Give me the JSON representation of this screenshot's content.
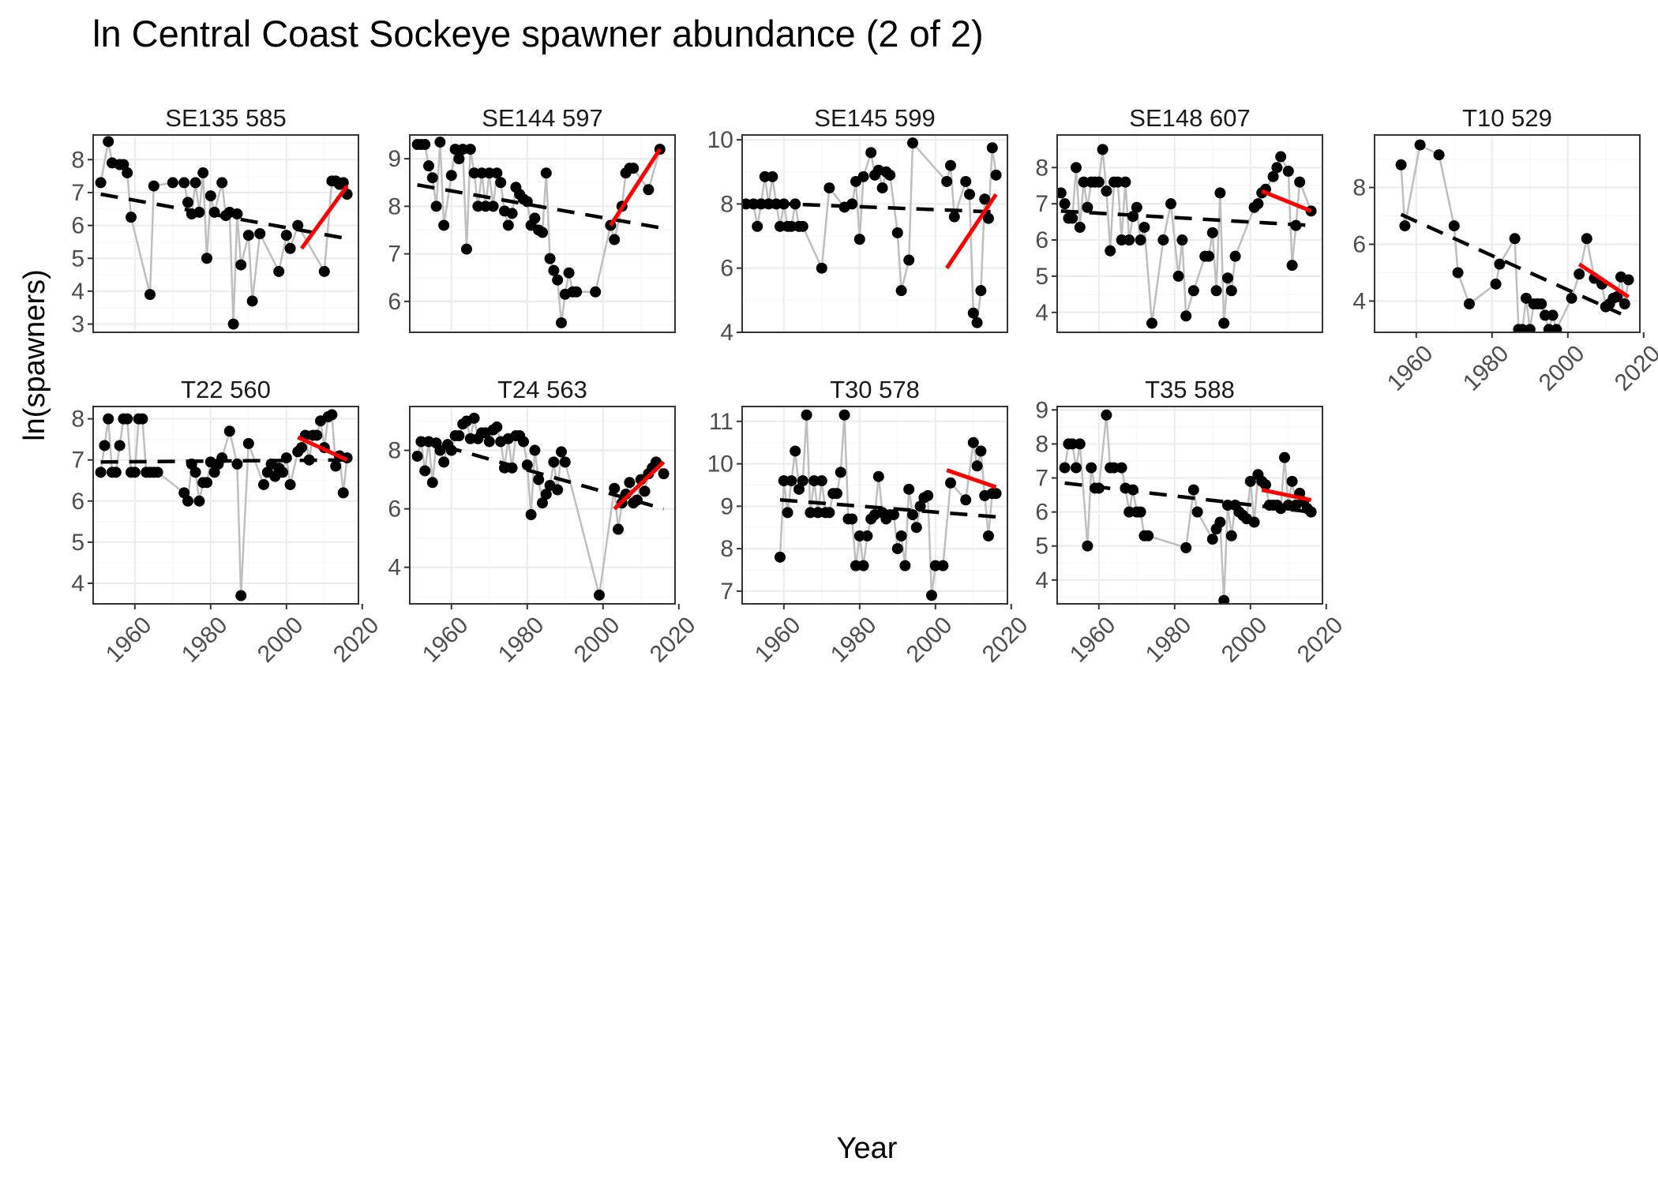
{
  "chart_data": {
    "type": "scatter",
    "title": "ln Central Coast Sockeye spawner abundance (2 of 2)",
    "xlabel": "Year",
    "ylabel": "ln(spawners)",
    "xlim": [
      1949,
      2019
    ],
    "xticks": [
      1960,
      1980,
      2000,
      2020
    ],
    "grid": true,
    "legend": "none",
    "colors": {
      "points": "#000000",
      "connector": "#bebebe",
      "long_trend": "#000000",
      "recent_trend": "#ff0000",
      "panel_border": "#333333",
      "grid": "#ebebeb"
    },
    "panels": [
      {
        "name": "SE135 585",
        "ylim": [
          2.75,
          8.75
        ],
        "yticks": [
          3,
          4,
          5,
          6,
          7,
          8
        ],
        "years": [
          1951,
          1953,
          1954,
          1956,
          1957,
          1958,
          1959,
          1964,
          1965,
          1970,
          1973,
          1974,
          1975,
          1976,
          1977,
          1978,
          1979,
          1980,
          1981,
          1983,
          1984,
          1985,
          1986,
          1987,
          1988,
          1990,
          1991,
          1993,
          1998,
          2000,
          2001,
          2003,
          2010,
          2012,
          2013,
          2014,
          2015,
          2016
        ],
        "values": [
          7.3,
          8.55,
          7.9,
          7.85,
          7.85,
          7.6,
          6.25,
          3.9,
          7.2,
          7.3,
          7.3,
          6.7,
          6.35,
          7.3,
          6.4,
          7.6,
          5.0,
          6.9,
          6.4,
          7.3,
          6.3,
          6.4,
          3.0,
          6.35,
          4.8,
          5.7,
          3.7,
          5.75,
          4.6,
          5.7,
          5.3,
          6.0,
          4.6,
          7.35,
          7.35,
          7.25,
          7.3,
          6.95
        ],
        "long_trend": {
          "x": [
            1951,
            2016
          ],
          "y": [
            6.95,
            5.6
          ]
        },
        "recent_trend": {
          "x": [
            2004,
            2016
          ],
          "y": [
            5.3,
            7.2
          ]
        }
      },
      {
        "name": "SE144 597",
        "ylim": [
          5.35,
          9.5
        ],
        "yticks": [
          6,
          7,
          8,
          9
        ],
        "years": [
          1951,
          1952,
          1953,
          1954,
          1955,
          1956,
          1957,
          1958,
          1960,
          1961,
          1962,
          1963,
          1964,
          1965,
          1966,
          1967,
          1968,
          1969,
          1970,
          1971,
          1972,
          1973,
          1974,
          1975,
          1976,
          1977,
          1978,
          1979,
          1980,
          1981,
          1982,
          1983,
          1984,
          1985,
          1986,
          1987,
          1988,
          1989,
          1990,
          1991,
          1992,
          1993,
          1998,
          2002,
          2003,
          2005,
          2006,
          2007,
          2008,
          2012,
          2015
        ],
        "values": [
          9.3,
          9.3,
          9.3,
          8.85,
          8.6,
          8.0,
          9.35,
          7.6,
          8.65,
          9.2,
          9.0,
          9.2,
          7.1,
          9.2,
          8.7,
          8.0,
          8.7,
          8.0,
          8.7,
          8.0,
          8.7,
          8.5,
          7.9,
          7.6,
          7.85,
          8.4,
          8.25,
          8.15,
          8.1,
          7.6,
          7.75,
          7.5,
          7.45,
          8.7,
          6.9,
          6.65,
          6.45,
          5.55,
          6.15,
          6.6,
          6.2,
          6.2,
          6.2,
          7.6,
          7.3,
          8.0,
          8.7,
          8.8,
          8.8,
          8.35,
          9.2
        ],
        "long_trend": {
          "x": [
            1951,
            2015
          ],
          "y": [
            8.45,
            7.55
          ]
        },
        "recent_trend": {
          "x": [
            2002,
            2015
          ],
          "y": [
            7.6,
            9.2
          ]
        }
      },
      {
        "name": "SE145 599",
        "ylim": [
          4.0,
          10.15
        ],
        "yticks": [
          4,
          6,
          8,
          10
        ],
        "years": [
          1950,
          1952,
          1953,
          1954,
          1955,
          1956,
          1957,
          1958,
          1959,
          1960,
          1961,
          1962,
          1963,
          1964,
          1965,
          1970,
          1972,
          1976,
          1978,
          1979,
          1980,
          1981,
          1983,
          1984,
          1985,
          1986,
          1987,
          1988,
          1990,
          1991,
          1993,
          1994,
          2003,
          2004,
          2005,
          2008,
          2009,
          2010,
          2011,
          2012,
          2013,
          2014,
          2015,
          2016
        ],
        "values": [
          8.0,
          8.0,
          7.3,
          8.0,
          8.85,
          8.0,
          8.85,
          8.0,
          7.3,
          8.0,
          7.3,
          7.3,
          8.0,
          7.3,
          7.3,
          6.0,
          8.5,
          7.9,
          8.0,
          8.7,
          6.9,
          8.85,
          9.6,
          8.9,
          9.05,
          8.5,
          9.0,
          8.9,
          7.1,
          5.3,
          6.25,
          9.9,
          8.7,
          9.2,
          7.6,
          8.7,
          8.3,
          4.6,
          4.3,
          5.3,
          8.15,
          7.55,
          9.75,
          8.9
        ],
        "long_trend": {
          "x": [
            1950,
            2016
          ],
          "y": [
            8.05,
            7.75
          ]
        },
        "recent_trend": {
          "x": [
            2003,
            2016
          ],
          "y": [
            6.0,
            8.3
          ]
        }
      },
      {
        "name": "SE148 607",
        "ylim": [
          3.45,
          8.9
        ],
        "yticks": [
          4,
          5,
          6,
          7,
          8
        ],
        "years": [
          1950,
          1951,
          1952,
          1953,
          1954,
          1955,
          1956,
          1957,
          1958,
          1959,
          1960,
          1961,
          1962,
          1963,
          1964,
          1965,
          1966,
          1967,
          1968,
          1969,
          1970,
          1971,
          1972,
          1974,
          1977,
          1979,
          1981,
          1982,
          1983,
          1985,
          1988,
          1989,
          1990,
          1991,
          1992,
          1993,
          1994,
          1995,
          1996,
          2001,
          2002,
          2003,
          2004,
          2006,
          2007,
          2008,
          2010,
          2011,
          2012,
          2013,
          2016
        ],
        "values": [
          7.3,
          7.0,
          6.6,
          6.6,
          8.0,
          6.35,
          7.6,
          6.9,
          7.6,
          7.6,
          7.6,
          8.5,
          7.35,
          5.7,
          7.6,
          7.6,
          6.0,
          7.6,
          6.0,
          6.65,
          6.9,
          6.0,
          6.35,
          3.7,
          6.0,
          7.0,
          5.0,
          6.0,
          3.9,
          4.6,
          5.55,
          5.55,
          6.2,
          4.6,
          7.3,
          3.7,
          4.95,
          4.6,
          5.55,
          6.9,
          7.0,
          7.3,
          7.4,
          7.75,
          8.0,
          8.3,
          7.9,
          5.3,
          6.4,
          7.6,
          6.8
        ],
        "long_trend": {
          "x": [
            1950,
            2016
          ],
          "y": [
            6.8,
            6.4
          ]
        },
        "recent_trend": {
          "x": [
            2003,
            2016
          ],
          "y": [
            7.35,
            6.8
          ]
        }
      },
      {
        "name": "T10 529",
        "ylim": [
          2.9,
          9.85
        ],
        "yticks": [
          4,
          6,
          8
        ],
        "years": [
          1956,
          1957,
          1961,
          1966,
          1970,
          1971,
          1974,
          1981,
          1982,
          1986,
          1987,
          1988,
          1989,
          1990,
          1991,
          1992,
          1993,
          1994,
          1995,
          1996,
          1997,
          2001,
          2003,
          2005,
          2007,
          2009,
          2010,
          2011,
          2012,
          2013,
          2014,
          2015,
          2016
        ],
        "values": [
          8.8,
          6.65,
          9.5,
          9.15,
          6.65,
          5.0,
          3.9,
          4.6,
          5.3,
          6.2,
          3.0,
          3.0,
          4.1,
          3.0,
          3.9,
          3.9,
          3.9,
          3.5,
          3.0,
          3.5,
          3.0,
          4.1,
          4.95,
          6.2,
          4.8,
          4.6,
          3.8,
          3.9,
          4.1,
          4.15,
          4.85,
          3.9,
          4.75
        ],
        "long_trend": {
          "x": [
            1956,
            2014
          ],
          "y": [
            7.05,
            3.55
          ]
        },
        "recent_trend": {
          "x": [
            2003,
            2016
          ],
          "y": [
            5.3,
            4.15
          ]
        }
      },
      {
        "name": "T22 560",
        "ylim": [
          3.5,
          8.3
        ],
        "yticks": [
          4,
          5,
          6,
          7,
          8
        ],
        "years": [
          1951,
          1952,
          1953,
          1954,
          1955,
          1956,
          1957,
          1958,
          1959,
          1960,
          1961,
          1962,
          1963,
          1964,
          1965,
          1966,
          1973,
          1974,
          1975,
          1976,
          1977,
          1978,
          1979,
          1980,
          1981,
          1982,
          1983,
          1985,
          1987,
          1988,
          1990,
          1994,
          1995,
          1996,
          1997,
          1998,
          1999,
          2000,
          2001,
          2003,
          2004,
          2005,
          2006,
          2007,
          2008,
          2009,
          2010,
          2011,
          2012,
          2013,
          2014,
          2015,
          2016
        ],
        "values": [
          6.7,
          7.35,
          8.0,
          6.7,
          6.7,
          7.35,
          8.0,
          8.0,
          6.7,
          6.7,
          8.0,
          8.0,
          6.7,
          6.7,
          6.7,
          6.7,
          6.2,
          6.0,
          6.9,
          6.7,
          6.0,
          6.45,
          6.45,
          6.95,
          6.7,
          6.9,
          7.05,
          7.7,
          6.9,
          3.7,
          7.4,
          6.4,
          6.7,
          6.9,
          6.6,
          6.8,
          6.7,
          7.05,
          6.4,
          7.2,
          7.3,
          7.6,
          7.0,
          7.6,
          7.6,
          7.95,
          7.3,
          8.05,
          8.1,
          6.85,
          7.1,
          6.2,
          7.05
        ],
        "long_trend": {
          "x": [
            1951,
            2016
          ],
          "y": [
            6.95,
            7.0
          ]
        },
        "recent_trend": {
          "x": [
            2003,
            2016
          ],
          "y": [
            7.55,
            7.0
          ]
        }
      },
      {
        "name": "T24 563",
        "ylim": [
          2.75,
          9.5
        ],
        "yticks": [
          4,
          6,
          8
        ],
        "years": [
          1951,
          1952,
          1953,
          1954,
          1955,
          1956,
          1957,
          1958,
          1959,
          1960,
          1961,
          1962,
          1963,
          1964,
          1965,
          1966,
          1967,
          1968,
          1969,
          1970,
          1971,
          1972,
          1973,
          1974,
          1975,
          1976,
          1977,
          1978,
          1979,
          1980,
          1981,
          1982,
          1983,
          1984,
          1985,
          1986,
          1987,
          1988,
          1989,
          1990,
          1999,
          2003,
          2004,
          2005,
          2006,
          2007,
          2008,
          2009,
          2010,
          2011,
          2012,
          2013,
          2014,
          2016
        ],
        "values": [
          7.8,
          8.3,
          7.3,
          8.3,
          6.9,
          8.25,
          8.0,
          7.6,
          8.2,
          8.0,
          8.5,
          8.5,
          8.9,
          9.0,
          8.4,
          9.1,
          8.4,
          8.6,
          8.6,
          8.3,
          8.7,
          8.8,
          8.3,
          7.4,
          8.4,
          7.4,
          8.5,
          8.5,
          8.3,
          7.5,
          5.8,
          8.0,
          7.0,
          6.2,
          6.5,
          6.8,
          7.6,
          6.65,
          7.95,
          7.6,
          3.05,
          6.7,
          5.3,
          6.2,
          6.5,
          6.9,
          6.2,
          6.3,
          7.0,
          6.6,
          7.2,
          7.4,
          7.6,
          7.2
        ],
        "long_trend": {
          "x": [
            1951,
            2016
          ],
          "y": [
            8.4,
            6.0
          ]
        },
        "recent_trend": {
          "x": [
            2003,
            2016
          ],
          "y": [
            6.0,
            7.6
          ]
        }
      },
      {
        "name": "T30 578",
        "ylim": [
          6.7,
          11.35
        ],
        "yticks": [
          7,
          8,
          9,
          10,
          11
        ],
        "years": [
          1959,
          1960,
          1961,
          1962,
          1963,
          1964,
          1965,
          1966,
          1967,
          1968,
          1969,
          1970,
          1971,
          1972,
          1973,
          1974,
          1975,
          1976,
          1977,
          1978,
          1979,
          1980,
          1981,
          1982,
          1983,
          1984,
          1985,
          1986,
          1987,
          1988,
          1989,
          1990,
          1991,
          1992,
          1993,
          1994,
          1995,
          1996,
          1997,
          1998,
          1999,
          2000,
          2002,
          2004,
          2008,
          2010,
          2011,
          2012,
          2013,
          2014,
          2015,
          2016
        ],
        "values": [
          7.8,
          9.6,
          8.85,
          9.6,
          10.3,
          9.4,
          9.6,
          11.15,
          8.85,
          9.6,
          8.85,
          9.6,
          8.85,
          8.85,
          9.3,
          9.3,
          9.8,
          11.15,
          8.7,
          8.7,
          7.6,
          8.3,
          7.6,
          8.3,
          8.7,
          8.8,
          9.7,
          8.85,
          8.7,
          8.8,
          8.8,
          8.0,
          8.3,
          7.6,
          9.4,
          8.8,
          8.5,
          9.0,
          9.2,
          9.25,
          6.9,
          7.6,
          7.6,
          9.55,
          9.15,
          10.5,
          9.95,
          10.3,
          9.25,
          8.3,
          9.3,
          9.3
        ],
        "long_trend": {
          "x": [
            1959,
            2016
          ],
          "y": [
            9.15,
            8.75
          ]
        },
        "recent_trend": {
          "x": [
            2003,
            2016
          ],
          "y": [
            9.85,
            9.45
          ]
        }
      },
      {
        "name": "T35 588",
        "ylim": [
          3.3,
          9.1
        ],
        "yticks": [
          4,
          5,
          6,
          7,
          8,
          9
        ],
        "years": [
          1951,
          1952,
          1953,
          1954,
          1955,
          1957,
          1958,
          1959,
          1960,
          1962,
          1963,
          1964,
          1966,
          1967,
          1968,
          1969,
          1970,
          1971,
          1972,
          1973,
          1983,
          1985,
          1986,
          1990,
          1991,
          1992,
          1993,
          1994,
          1995,
          1996,
          1997,
          1998,
          1999,
          2000,
          2001,
          2002,
          2003,
          2004,
          2005,
          2006,
          2007,
          2008,
          2009,
          2010,
          2011,
          2012,
          2013,
          2014,
          2015,
          2016
        ],
        "values": [
          7.3,
          8.0,
          8.0,
          7.3,
          8.0,
          5.0,
          7.3,
          6.7,
          6.7,
          8.85,
          7.3,
          7.3,
          7.3,
          6.7,
          6.0,
          6.65,
          6.0,
          6.0,
          5.3,
          5.3,
          4.95,
          6.65,
          6.0,
          5.2,
          5.5,
          5.7,
          3.4,
          6.2,
          5.3,
          6.2,
          6.0,
          5.9,
          5.8,
          6.9,
          5.7,
          7.1,
          6.9,
          6.8,
          6.2,
          6.2,
          6.2,
          6.1,
          7.6,
          6.2,
          6.9,
          6.2,
          6.55,
          6.3,
          6.1,
          6.0
        ],
        "long_trend": {
          "x": [
            1951,
            2016
          ],
          "y": [
            6.85,
            6.0
          ]
        },
        "recent_trend": {
          "x": [
            2003,
            2016
          ],
          "y": [
            6.65,
            6.35
          ]
        }
      }
    ]
  }
}
